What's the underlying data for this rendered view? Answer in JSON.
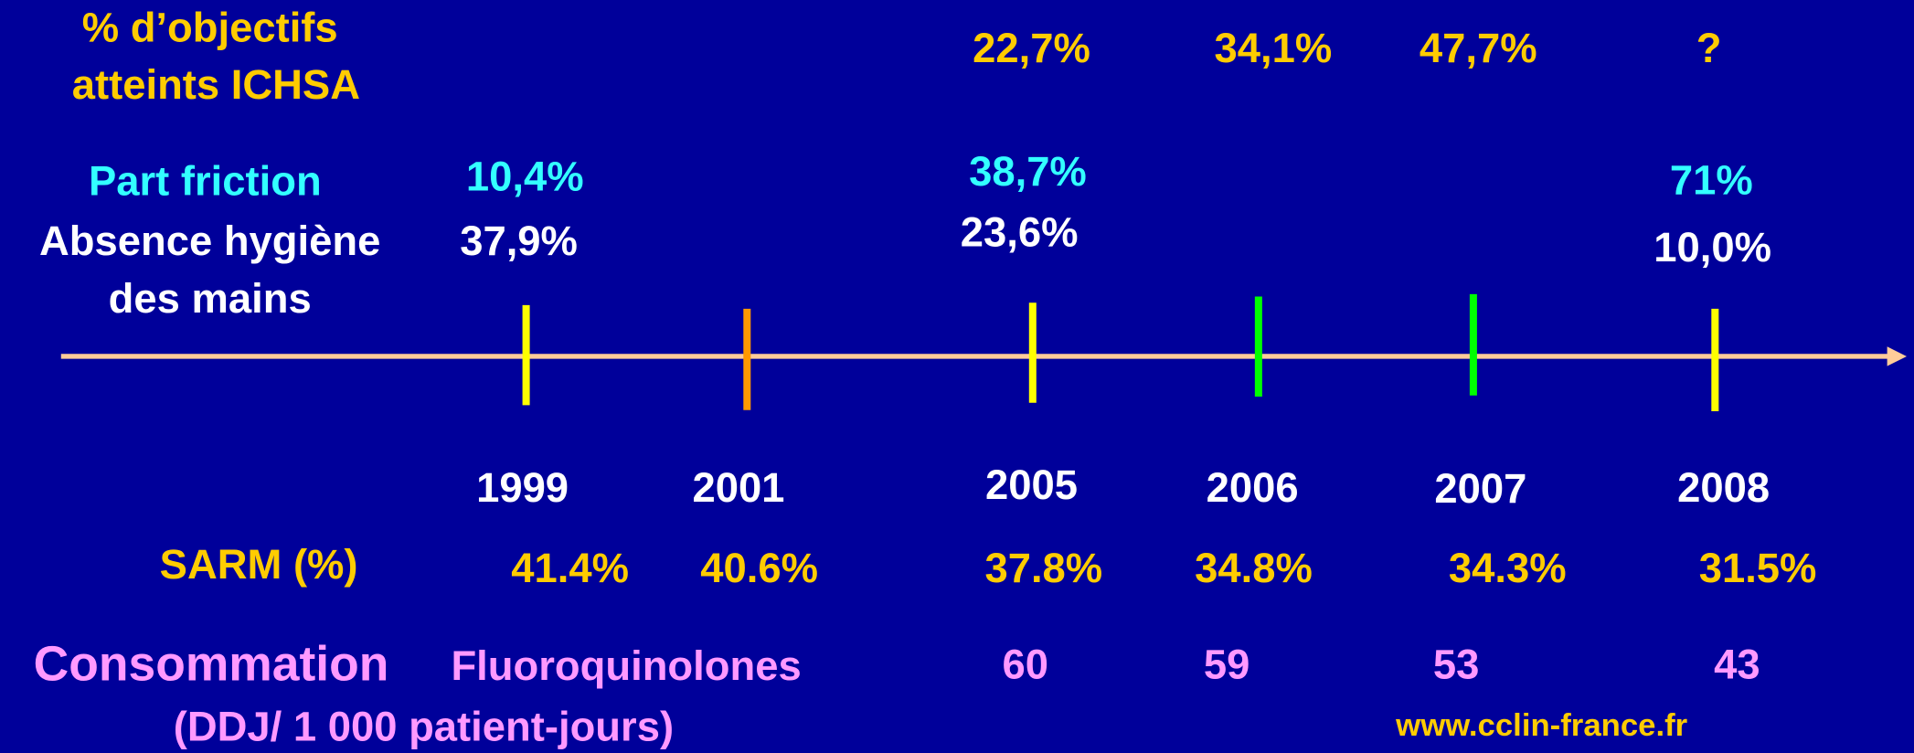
{
  "objectives": {
    "label": [
      "% d’objectifs",
      "atteints ICHSA"
    ],
    "values": [
      "22,7%",
      "34,1%",
      "47,7%",
      "?"
    ]
  },
  "friction": {
    "label": "Part friction",
    "values": [
      "10,4%",
      "38,7%",
      "71%"
    ]
  },
  "no_hygiene": {
    "label": [
      "Absence hygiène",
      "des mains"
    ],
    "values": [
      "37,9%",
      "23,6%",
      "10,0%"
    ]
  },
  "years": [
    "1999",
    "2001",
    "2005",
    "2006",
    "2007",
    "2008"
  ],
  "sarm": {
    "label": "SARM (%)",
    "values": [
      "41.4%",
      "40.6%",
      "37.8%",
      "34.8%",
      "34.3%",
      "31.5%"
    ]
  },
  "consumption": {
    "label": "Consommation",
    "drug": "Fluoroquinolones",
    "unit": "(DDJ/ 1 000 patient-jours)",
    "values": [
      "60",
      "59",
      "53",
      "43"
    ]
  },
  "source": "www.cclin-france.fr"
}
